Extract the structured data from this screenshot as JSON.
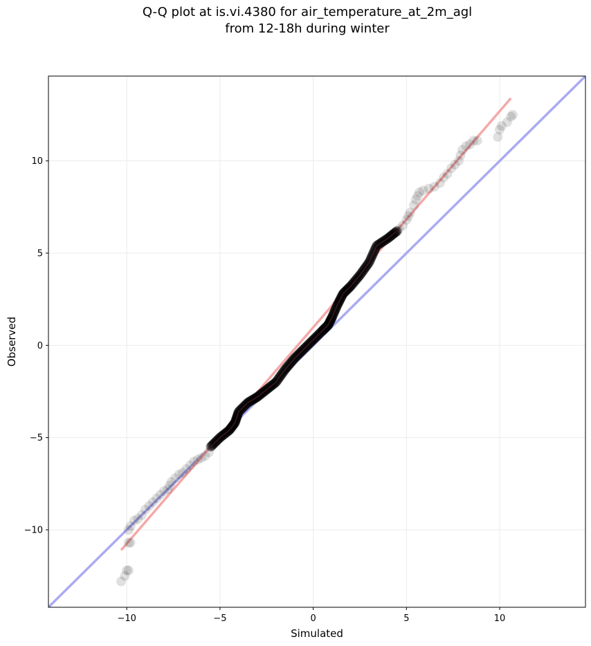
{
  "chart_data": {
    "type": "scatter",
    "title": [
      "Q-Q plot at is.vi.4380 for air_temperature_at_2m_agl",
      "from 12-18h during winter"
    ],
    "xlabel": "Simulated",
    "ylabel": "Observed",
    "xlim": [
      -14.2,
      14.6
    ],
    "ylim": [
      -14.2,
      14.6
    ],
    "xticks": [
      -10,
      -5,
      0,
      5,
      10
    ],
    "yticks": [
      -10,
      -5,
      0,
      5,
      10
    ],
    "tick_labels": [
      "−10",
      "−5",
      "0",
      "5",
      "10"
    ],
    "grid": true,
    "reference_lines": [
      {
        "name": "1:1",
        "color": "#aaaaf2",
        "x": [
          -14.2,
          14.6
        ],
        "y": [
          -14.2,
          14.6
        ]
      },
      {
        "name": "fit",
        "color": "#f5a8a8",
        "x": [
          -10.3,
          10.6
        ],
        "y": [
          -11.1,
          13.4
        ]
      }
    ],
    "quantile_curve": {
      "x": [
        -5.5,
        -5.0,
        -4.5,
        -4.2,
        -4.0,
        -3.5,
        -3.0,
        -2.5,
        -2.0,
        -1.5,
        -1.0,
        -0.5,
        0.0,
        0.5,
        0.8,
        1.0,
        1.3,
        1.6,
        2.0,
        2.5,
        3.0,
        3.4,
        4.0,
        4.5
      ],
      "y": [
        -5.5,
        -5.0,
        -4.6,
        -4.2,
        -3.6,
        -3.1,
        -2.8,
        -2.4,
        -2.0,
        -1.3,
        -0.7,
        -0.2,
        0.3,
        0.8,
        1.1,
        1.5,
        2.2,
        2.8,
        3.2,
        3.8,
        4.5,
        5.4,
        5.8,
        6.2
      ]
    },
    "points": [
      [
        -10.3,
        -12.8
      ],
      [
        -10.1,
        -12.5
      ],
      [
        -10.0,
        -12.2
      ],
      [
        -9.9,
        -12.2
      ],
      [
        -9.9,
        -10.7
      ],
      [
        -9.8,
        -10.7
      ],
      [
        -9.9,
        -10.0
      ],
      [
        -9.8,
        -9.8
      ],
      [
        -9.6,
        -9.5
      ],
      [
        -9.4,
        -9.4
      ],
      [
        -9.2,
        -9.2
      ],
      [
        -9.0,
        -8.9
      ],
      [
        -8.8,
        -8.7
      ],
      [
        -8.6,
        -8.5
      ],
      [
        -8.4,
        -8.3
      ],
      [
        -8.2,
        -8.1
      ],
      [
        -8.0,
        -7.9
      ],
      [
        -7.8,
        -7.8
      ],
      [
        -7.7,
        -7.6
      ],
      [
        -7.6,
        -7.4
      ],
      [
        -7.4,
        -7.2
      ],
      [
        -7.2,
        -7.0
      ],
      [
        -7.0,
        -6.9
      ],
      [
        -6.8,
        -6.7
      ],
      [
        -6.6,
        -6.5
      ],
      [
        -6.4,
        -6.3
      ],
      [
        -6.2,
        -6.2
      ],
      [
        -6.0,
        -6.1
      ],
      [
        -5.8,
        -6.0
      ],
      [
        -5.6,
        -5.8
      ],
      [
        4.6,
        6.3
      ],
      [
        4.8,
        6.5
      ],
      [
        5.0,
        6.8
      ],
      [
        5.1,
        7.0
      ],
      [
        5.2,
        7.2
      ],
      [
        5.4,
        7.6
      ],
      [
        5.5,
        7.9
      ],
      [
        5.6,
        8.1
      ],
      [
        5.7,
        8.3
      ],
      [
        5.9,
        8.4
      ],
      [
        6.2,
        8.5
      ],
      [
        6.5,
        8.6
      ],
      [
        6.8,
        8.8
      ],
      [
        7.0,
        9.1
      ],
      [
        7.2,
        9.3
      ],
      [
        7.4,
        9.6
      ],
      [
        7.6,
        9.8
      ],
      [
        7.8,
        10.0
      ],
      [
        7.9,
        10.3
      ],
      [
        8.0,
        10.6
      ],
      [
        8.2,
        10.8
      ],
      [
        8.4,
        10.9
      ],
      [
        8.6,
        11.1
      ],
      [
        8.8,
        11.1
      ],
      [
        9.9,
        11.3
      ],
      [
        10.0,
        11.7
      ],
      [
        10.1,
        11.9
      ],
      [
        10.4,
        12.1
      ],
      [
        10.6,
        12.4
      ],
      [
        10.7,
        12.5
      ]
    ]
  }
}
